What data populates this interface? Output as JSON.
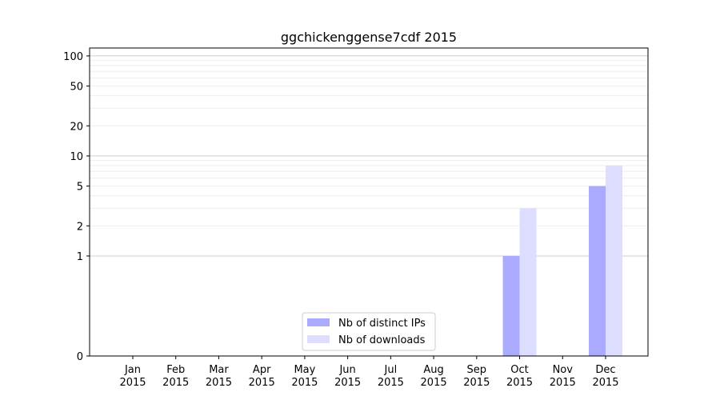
{
  "chart_data": {
    "type": "bar",
    "title": "ggchickenggense7cdf 2015",
    "xlabel": "",
    "ylabel": "",
    "categories": [
      [
        "Jan",
        "2015"
      ],
      [
        "Feb",
        "2015"
      ],
      [
        "Mar",
        "2015"
      ],
      [
        "Apr",
        "2015"
      ],
      [
        "May",
        "2015"
      ],
      [
        "Jun",
        "2015"
      ],
      [
        "Jul",
        "2015"
      ],
      [
        "Aug",
        "2015"
      ],
      [
        "Sep",
        "2015"
      ],
      [
        "Oct",
        "2015"
      ],
      [
        "Nov",
        "2015"
      ],
      [
        "Dec",
        "2015"
      ]
    ],
    "series": [
      {
        "name": "Nb of distinct IPs",
        "color": "#aaaaff",
        "values": [
          0,
          0,
          0,
          0,
          0,
          0,
          0,
          0,
          0,
          1,
          0,
          5
        ]
      },
      {
        "name": "Nb of downloads",
        "color": "#ddddff",
        "values": [
          0,
          0,
          0,
          0,
          0,
          0,
          0,
          0,
          0,
          3,
          0,
          8
        ]
      }
    ],
    "yscale": "symlog",
    "ylim": [
      0,
      120
    ],
    "yticks": [
      0,
      1,
      2,
      5,
      10,
      20,
      50,
      100
    ],
    "grid": true,
    "legend_position": "bottom-center"
  }
}
